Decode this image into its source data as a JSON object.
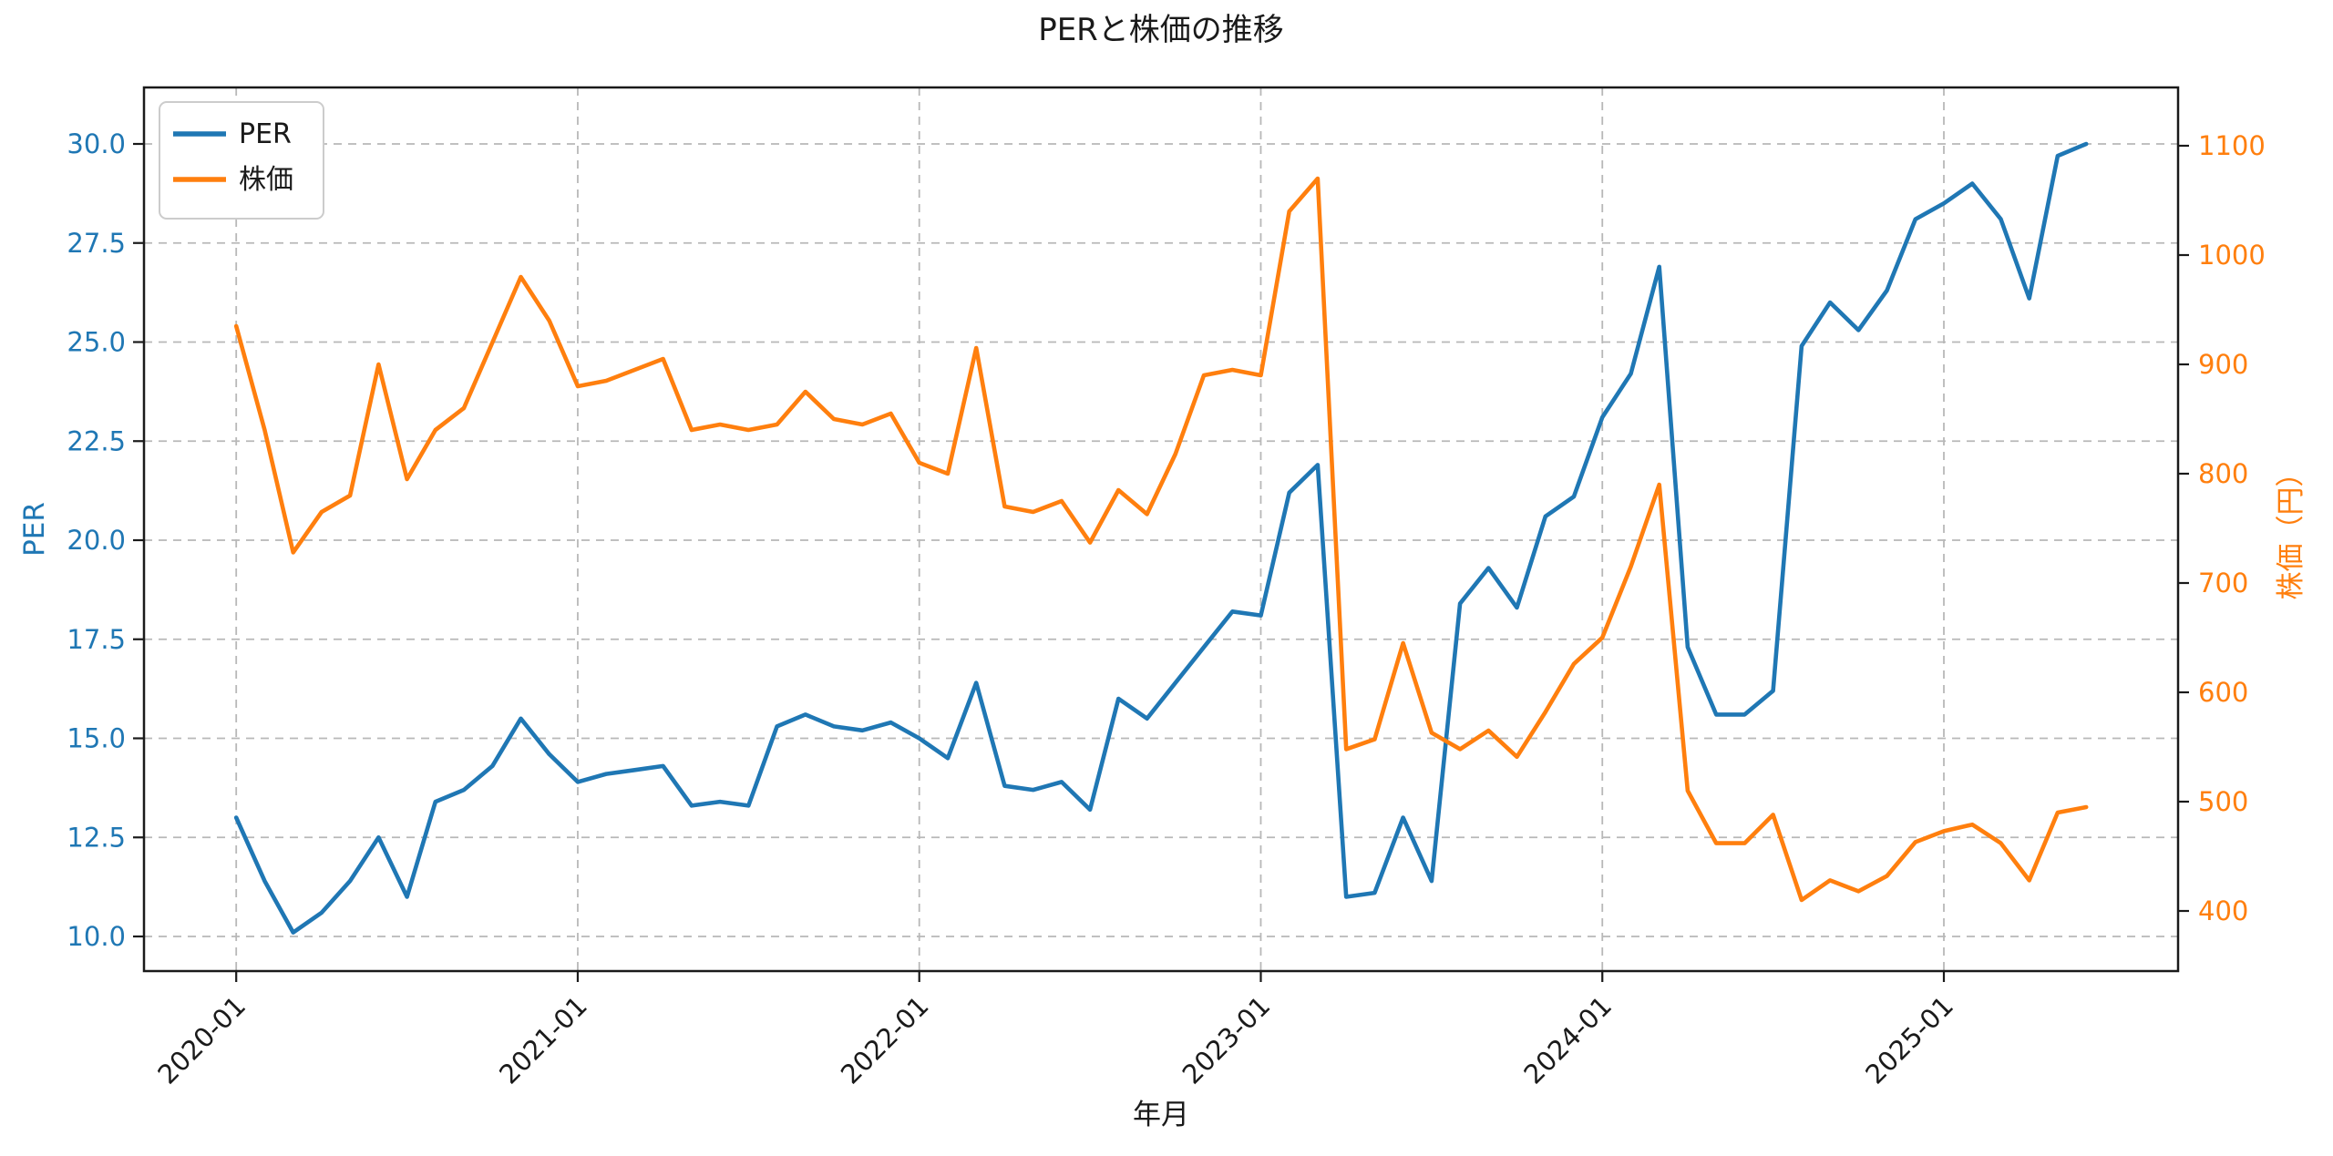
{
  "chart_data": {
    "type": "line",
    "title": "PERと株価の推移",
    "xlabel": "年月",
    "ylabel_left": "PER",
    "ylabel_right": "株価（円）",
    "x": [
      "2020-01",
      "2020-02",
      "2020-03",
      "2020-04",
      "2020-05",
      "2020-06",
      "2020-07",
      "2020-08",
      "2020-09",
      "2020-10",
      "2020-11",
      "2020-12",
      "2021-01",
      "2021-02",
      "2021-03",
      "2021-04",
      "2021-05",
      "2021-06",
      "2021-07",
      "2021-08",
      "2021-09",
      "2021-10",
      "2021-11",
      "2021-12",
      "2022-01",
      "2022-02",
      "2022-03",
      "2022-04",
      "2022-05",
      "2022-06",
      "2022-07",
      "2022-08",
      "2022-09",
      "2022-10",
      "2022-11",
      "2022-12",
      "2023-01",
      "2023-02",
      "2023-03",
      "2023-04",
      "2023-05",
      "2023-06",
      "2023-07",
      "2023-08",
      "2023-09",
      "2023-10",
      "2023-11",
      "2023-12",
      "2024-01",
      "2024-02",
      "2024-03",
      "2024-04",
      "2024-05",
      "2024-06",
      "2024-07",
      "2024-08",
      "2024-09",
      "2024-10",
      "2024-11",
      "2024-12",
      "2025-01",
      "2025-02",
      "2025-03",
      "2025-04",
      "2025-05",
      "2025-06"
    ],
    "series": [
      {
        "name": "PER",
        "axis": "left",
        "color": "#1f77b4",
        "values": [
          13.0,
          11.4,
          10.1,
          10.6,
          11.4,
          12.5,
          11.0,
          13.4,
          13.7,
          14.3,
          15.5,
          14.6,
          13.9,
          14.1,
          14.2,
          14.3,
          13.3,
          13.4,
          13.3,
          15.3,
          15.6,
          15.3,
          15.2,
          15.4,
          15.0,
          14.5,
          16.4,
          13.8,
          13.7,
          13.9,
          13.2,
          16.0,
          15.5,
          16.4,
          17.3,
          18.2,
          18.1,
          21.2,
          21.9,
          11.0,
          11.1,
          13.0,
          11.4,
          18.4,
          19.3,
          18.3,
          20.6,
          21.1,
          23.1,
          24.2,
          26.9,
          17.3,
          15.6,
          15.6,
          16.2,
          24.9,
          26.0,
          25.3,
          26.3,
          28.1,
          28.5,
          29.0,
          28.1,
          26.1,
          29.7,
          30.0
        ]
      },
      {
        "name": "株価",
        "axis": "right",
        "color": "#ff7f0e",
        "values": [
          935,
          840,
          728,
          765,
          780,
          900,
          795,
          840,
          860,
          920,
          980,
          940,
          880,
          885,
          895,
          905,
          840,
          845,
          840,
          845,
          875,
          850,
          845,
          855,
          810,
          800,
          915,
          770,
          765,
          775,
          737,
          785,
          763,
          818,
          890,
          895,
          890,
          1040,
          1070,
          548,
          557,
          645,
          563,
          548,
          565,
          541,
          582,
          626,
          650,
          715,
          790,
          510,
          462,
          462,
          488,
          410,
          428,
          418,
          432,
          463,
          473,
          479,
          462,
          428,
          490,
          495
        ]
      }
    ],
    "left_axis": {
      "tick_values": [
        10,
        12.5,
        15,
        17.5,
        20,
        22.5,
        25,
        27.5,
        30
      ],
      "tick_labels": [
        "10.0",
        "12.5",
        "15.0",
        "17.5",
        "20.0",
        "22.5",
        "25.0",
        "27.5",
        "30.0"
      ],
      "color": "#1f77b4"
    },
    "right_axis": {
      "tick_values": [
        400,
        500,
        600,
        700,
        800,
        900,
        1000,
        1100
      ],
      "tick_labels": [
        "400",
        "500",
        "600",
        "700",
        "800",
        "900",
        "1000",
        "1100"
      ],
      "color": "#ff7f0e"
    },
    "x_axis": {
      "tick_indices": [
        0,
        12,
        24,
        36,
        48,
        60
      ],
      "tick_labels": [
        "2020-01",
        "2021-01",
        "2022-01",
        "2023-01",
        "2024-01",
        "2025-01"
      ]
    },
    "grid": {
      "on": true,
      "color": "#b8b8b8",
      "dash": "9 7"
    },
    "legend": {
      "position": "upper-left",
      "items": [
        {
          "label": "PER",
          "color": "#1f77b4"
        },
        {
          "label": "株価",
          "color": "#ff7f0e"
        }
      ]
    }
  }
}
